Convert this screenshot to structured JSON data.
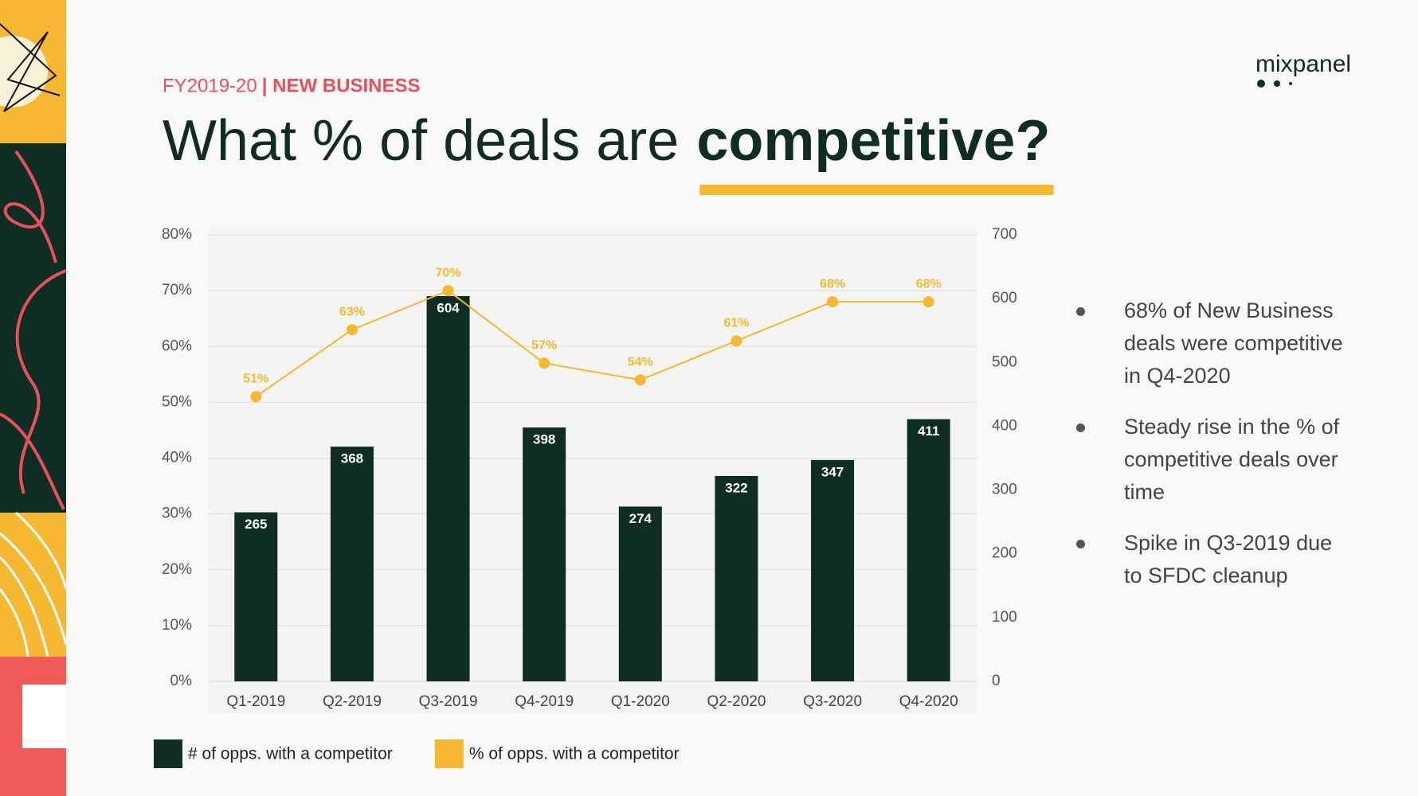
{
  "header": {
    "eyebrow_light": "FY2019-20",
    "eyebrow_bold": "| NEW BUSINESS",
    "title_light": "What % of deals are",
    "title_bold": "competitive?",
    "logo": "mixpanel"
  },
  "chart_data": {
    "type": "bar",
    "categories": [
      "Q1-2019",
      "Q2-2019",
      "Q3-2019",
      "Q4-2019",
      "Q1-2020",
      "Q2-2020",
      "Q3-2020",
      "Q4-2020"
    ],
    "series": [
      {
        "name": "# of opps. with a competitor",
        "type": "bar",
        "axis": "y2",
        "color": "#0f2d22",
        "values": [
          265,
          368,
          604,
          398,
          274,
          322,
          347,
          411
        ]
      },
      {
        "name": "% of opps. with a competitor",
        "type": "line",
        "color": "#f6b731",
        "values": [
          51,
          63,
          70,
          57,
          54,
          61,
          68,
          68
        ],
        "value_labels": [
          "51%",
          "63%",
          "70%",
          "57%",
          "54%",
          "61%",
          "68%",
          "68%"
        ]
      }
    ],
    "ylim": [
      0,
      80
    ],
    "yticks": [
      {
        "value": 0,
        "label": "0%"
      },
      {
        "value": 10,
        "label": "10%"
      },
      {
        "value": 20,
        "label": "20%"
      },
      {
        "value": 30,
        "label": "30%"
      },
      {
        "value": 40,
        "label": "40%"
      },
      {
        "value": 50,
        "label": "50%"
      },
      {
        "value": 60,
        "label": "60%"
      },
      {
        "value": 70,
        "label": "70%"
      },
      {
        "value": 80,
        "label": "80%"
      }
    ],
    "y2lim": [
      0,
      700
    ],
    "y2ticks": [
      0,
      100,
      200,
      300,
      400,
      500,
      600,
      700
    ],
    "grid": true,
    "legend": "bottom-left"
  },
  "bullets": [
    "68% of New Business deals were competitive in Q4-2020",
    "Steady rise in the % of competitive deals over time",
    "Spike in Q3-2019 due to SFDC cleanup"
  ]
}
